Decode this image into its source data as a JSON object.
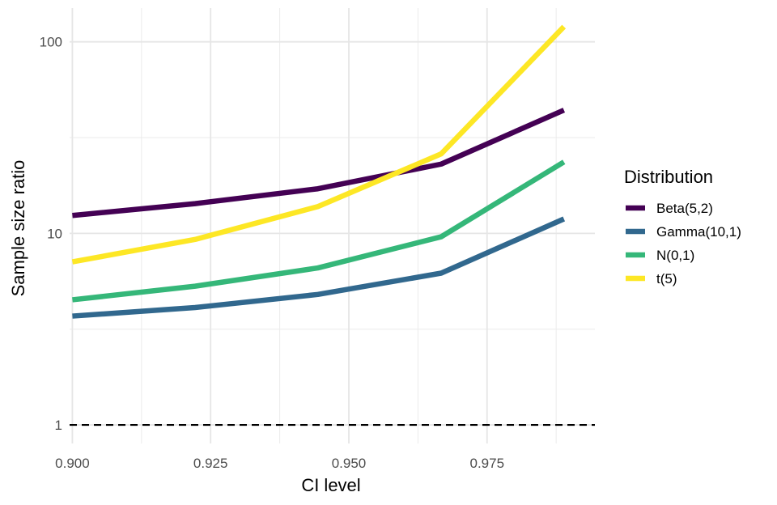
{
  "chart_data": {
    "type": "line",
    "title": "",
    "xlabel": "CI level",
    "ylabel": "Sample size ratio",
    "xlim": [
      0.8995,
      0.9945
    ],
    "ylim": [
      0.8,
      150
    ],
    "yscale": "log10",
    "x": [
      0.9,
      0.9222,
      0.9444,
      0.9667,
      0.9889
    ],
    "xticks": [
      0.9,
      0.925,
      0.95,
      0.975
    ],
    "xtick_labels": [
      "0.900",
      "0.925",
      "0.950",
      "0.975"
    ],
    "yticks": [
      1,
      10,
      100
    ],
    "ytick_labels": [
      "1",
      "10",
      "100"
    ],
    "reference_line": {
      "y": 1,
      "style": "dashed"
    },
    "legend": {
      "title": "Distribution",
      "position": "right"
    },
    "series": [
      {
        "name": "Beta(5,2)",
        "color": "#440154",
        "values": [
          12.4,
          14.3,
          17.1,
          23.0,
          44.0
        ]
      },
      {
        "name": "Gamma(10,1)",
        "color": "#31688E",
        "values": [
          3.7,
          4.1,
          4.8,
          6.2,
          11.9
        ]
      },
      {
        "name": "N(0,1)",
        "color": "#35B779",
        "values": [
          4.5,
          5.3,
          6.6,
          9.6,
          23.6
        ]
      },
      {
        "name": "t(5)",
        "color": "#FDE725",
        "values": [
          7.1,
          9.3,
          13.8,
          26.0,
          120.0
        ]
      }
    ]
  }
}
